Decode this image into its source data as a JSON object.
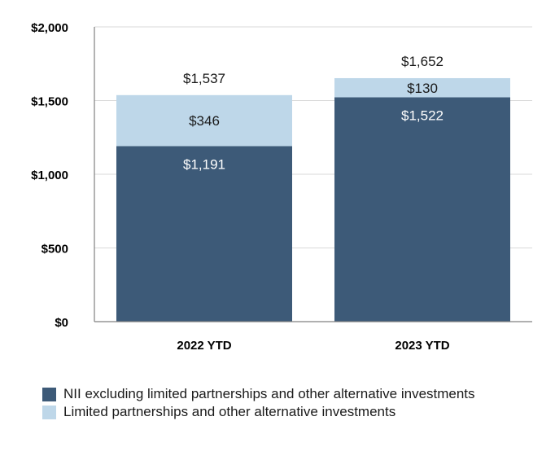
{
  "chart_data": {
    "type": "bar",
    "stacked": true,
    "categories": [
      "2022 YTD",
      "2023 YTD"
    ],
    "series": [
      {
        "name": "NII excluding limited partnerships and other alternative investments",
        "values": [
          1191,
          1522
        ],
        "labels": [
          "$1,191",
          "$1,522"
        ],
        "color": "#3d5a78",
        "label_color": "#ffffff"
      },
      {
        "name": "Limited partnerships and other alternative investments",
        "values": [
          346,
          130
        ],
        "labels": [
          "$346",
          "$130"
        ],
        "color": "#bed7e9",
        "label_color": "#1a1a1a"
      }
    ],
    "totals": [
      1537,
      1652
    ],
    "total_labels": [
      "$1,537",
      "$1,652"
    ],
    "y_ticks": [
      0,
      500,
      1000,
      1500,
      2000
    ],
    "y_tick_labels": [
      "$0",
      "$500",
      "$1,000",
      "$1,500",
      "$2,000"
    ],
    "ylim": [
      0,
      2000
    ],
    "grid": true,
    "legend_position": "bottom-left",
    "title": "",
    "xlabel": "",
    "ylabel": ""
  }
}
